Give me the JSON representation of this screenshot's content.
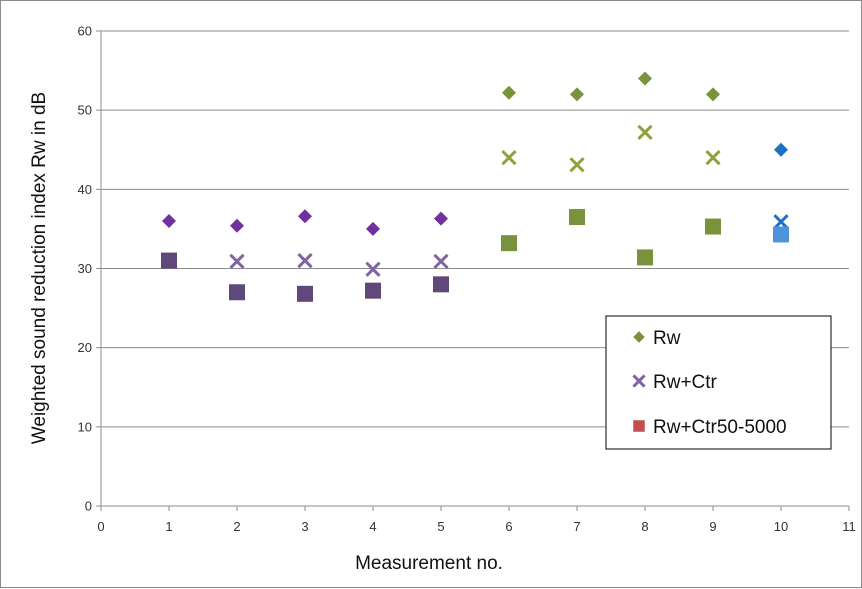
{
  "chart_data": {
    "type": "scatter",
    "title": "",
    "xlabel": "Measurement no.",
    "ylabel": "Weighted sound reduction index Rw in dB",
    "xlim": [
      0,
      11
    ],
    "ylim": [
      0,
      60
    ],
    "x_ticks": [
      0,
      1,
      2,
      3,
      4,
      5,
      6,
      7,
      8,
      9,
      10,
      11
    ],
    "y_ticks": [
      0,
      10,
      20,
      30,
      40,
      50,
      60
    ],
    "grid": "horizontal",
    "legend_position": "bottom-right",
    "series": [
      {
        "name": "Rw",
        "marker": "diamond",
        "legend_color": "#77933c",
        "points": [
          {
            "x": 1,
            "y": 36,
            "color": "#7030a0"
          },
          {
            "x": 2,
            "y": 35.4,
            "color": "#7030a0"
          },
          {
            "x": 3,
            "y": 36.6,
            "color": "#7030a0"
          },
          {
            "x": 4,
            "y": 35,
            "color": "#7030a0"
          },
          {
            "x": 5,
            "y": 36.3,
            "color": "#7030a0"
          },
          {
            "x": 6,
            "y": 52.2,
            "color": "#77933c"
          },
          {
            "x": 7,
            "y": 52,
            "color": "#77933c"
          },
          {
            "x": 8,
            "y": 54,
            "color": "#77933c"
          },
          {
            "x": 9,
            "y": 52,
            "color": "#77933c"
          },
          {
            "x": 10,
            "y": 45,
            "color": "#1f6fc4"
          }
        ]
      },
      {
        "name": "Rw+Ctr",
        "marker": "x",
        "legend_color": "#8064a2",
        "points": [
          {
            "x": 2,
            "y": 30.9,
            "color": "#8064a2"
          },
          {
            "x": 3,
            "y": 31,
            "color": "#8064a2"
          },
          {
            "x": 4,
            "y": 29.9,
            "color": "#8064a2"
          },
          {
            "x": 5,
            "y": 30.9,
            "color": "#8064a2"
          },
          {
            "x": 6,
            "y": 44,
            "color": "#92a03c"
          },
          {
            "x": 7,
            "y": 43.1,
            "color": "#92a03c"
          },
          {
            "x": 8,
            "y": 47.2,
            "color": "#92a03c"
          },
          {
            "x": 9,
            "y": 44,
            "color": "#92a03c"
          },
          {
            "x": 10,
            "y": 35.9,
            "color": "#1f6fc4"
          }
        ]
      },
      {
        "name": "Rw+Ctr50-5000",
        "marker": "square",
        "legend_color": "#c0504d",
        "points": [
          {
            "x": 1,
            "y": 31,
            "color": "#60497a"
          },
          {
            "x": 2,
            "y": 27,
            "color": "#60497a"
          },
          {
            "x": 3,
            "y": 26.8,
            "color": "#60497a"
          },
          {
            "x": 4,
            "y": 27.2,
            "color": "#60497a"
          },
          {
            "x": 5,
            "y": 28,
            "color": "#60497a"
          },
          {
            "x": 6,
            "y": 33.2,
            "color": "#77933c"
          },
          {
            "x": 7,
            "y": 36.5,
            "color": "#77933c"
          },
          {
            "x": 8,
            "y": 31.4,
            "color": "#77933c"
          },
          {
            "x": 9,
            "y": 35.3,
            "color": "#77933c"
          },
          {
            "x": 10,
            "y": 34.3,
            "color": "#4f94d8"
          }
        ]
      }
    ]
  }
}
